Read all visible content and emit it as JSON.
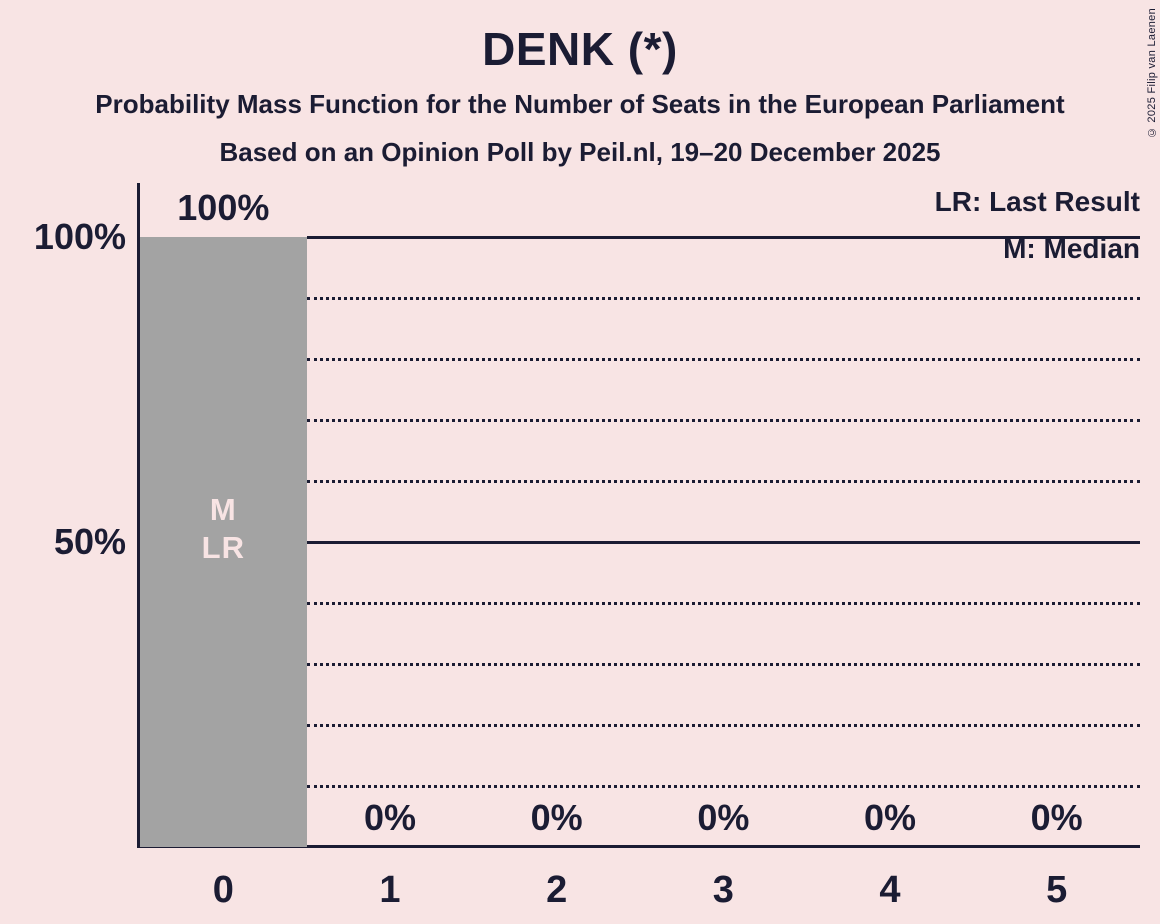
{
  "copyright": "© 2025 Filip van Laenen",
  "colors": {
    "background": "#f8e4e4",
    "text": "#1b1c33",
    "bar": "#a3a3a3",
    "bar_label_text": "#f8e4e4"
  },
  "chart_data": {
    "type": "bar",
    "title": "DENK (*)",
    "subtitle": "Probability Mass Function for the Number of Seats in the European Parliament",
    "source_line": "Based on an Opinion Poll by Peil.nl, 19–20 December 2025",
    "categories": [
      "0",
      "1",
      "2",
      "3",
      "4",
      "5"
    ],
    "values": [
      100,
      0,
      0,
      0,
      0,
      0
    ],
    "value_labels": [
      "100%",
      "0%",
      "0%",
      "0%",
      "0%",
      "0%"
    ],
    "xlabel": "",
    "ylabel": "",
    "ylim": [
      0,
      100
    ],
    "y_axis_ticks": [
      {
        "label": "100%",
        "value": 100
      },
      {
        "label": "50%",
        "value": 50
      }
    ],
    "solid_gridlines": [
      100,
      50
    ],
    "dotted_gridlines": [
      90,
      80,
      70,
      60,
      40,
      30,
      20,
      10
    ],
    "grid": "horizontal",
    "legend_position": "top-right",
    "legend": {
      "lr": "LR: Last Result",
      "m": "M: Median"
    },
    "annotations": [
      {
        "category": "0",
        "lines": [
          "M",
          "LR"
        ]
      }
    ]
  }
}
